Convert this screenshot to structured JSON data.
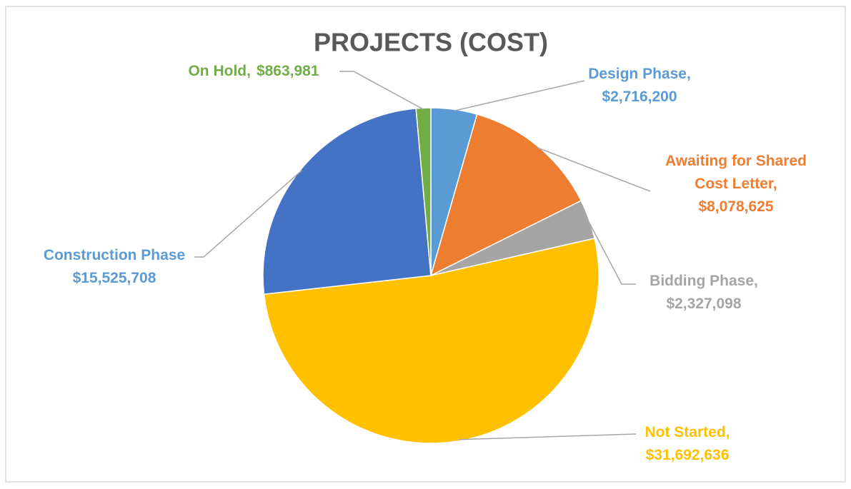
{
  "chart_data": {
    "type": "pie",
    "title": "PROJECTS (COST)",
    "categories": [
      "Design Phase,",
      "Awaiting for Shared Cost Letter,",
      "Bidding Phase,",
      "Not Started,",
      "Construction Phase",
      "On Hold,"
    ],
    "values": [
      2716200,
      8078625,
      2327098,
      31692636,
      15525708,
      863981
    ],
    "value_labels": [
      "$2,716,200",
      "$8,078,625",
      "$2,327,098",
      "$31,692,636",
      "$15,525,708",
      "$863,981"
    ],
    "colors": [
      "#5b9bd5",
      "#ed7d31",
      "#a5a5a5",
      "#ffc000",
      "#4472c4",
      "#70ad47"
    ],
    "label_colors": [
      "#5b9bd5",
      "#ed7d31",
      "#a5a5a5",
      "#ffc000",
      "#5b9bd5",
      "#70ad47"
    ]
  }
}
